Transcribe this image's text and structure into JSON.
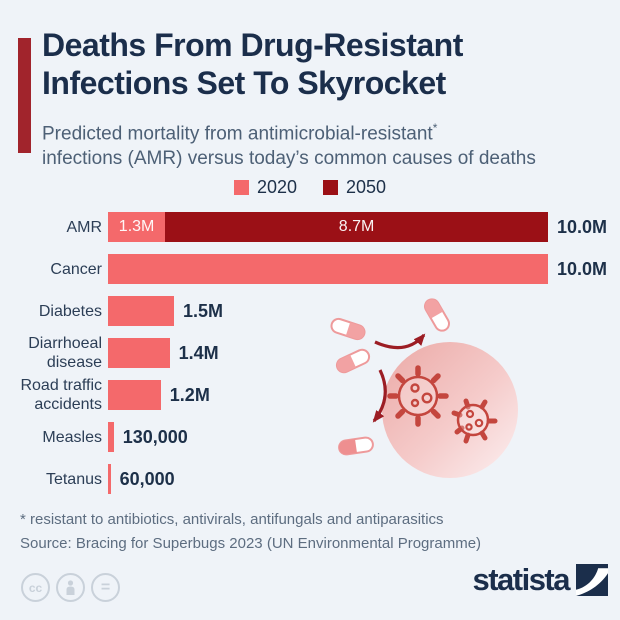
{
  "page": {
    "background": "#eff3f8",
    "accent_color": "#a1242c",
    "brand_color": "#1b2e4b"
  },
  "header": {
    "title": "Deaths From Drug-Resistant Infections Set To Skyrocket",
    "subtitle_line1": "Predicted mortality from antimicrobial-resistant",
    "subtitle_sup": "*",
    "subtitle_line2": "infections (AMR) versus today’s common causes of deaths"
  },
  "legend": [
    {
      "label": "2020",
      "color": "#f4696b"
    },
    {
      "label": "2050",
      "color": "#9b1016"
    }
  ],
  "chart_data": {
    "type": "bar",
    "orientation": "horizontal",
    "title": "Predicted mortality from antimicrobial-resistant infections (AMR) versus today's common causes of deaths",
    "unit": "annual deaths (millions)",
    "x_max": 10.0,
    "grid": false,
    "legend_position": "top-center",
    "series_names": [
      "2020",
      "2050"
    ],
    "series_colors": [
      "#f4696b",
      "#9b1016"
    ],
    "rows": [
      {
        "category": "AMR",
        "value_2020_m": 1.3,
        "value_2050_m": 8.7,
        "label_2020": "1.3M",
        "label_2050": "8.7M",
        "total_label": "10.0M"
      },
      {
        "category": "Cancer",
        "value_2020_m": 10.0,
        "value_2050_m": 0,
        "total_label": "10.0M"
      },
      {
        "category": "Diabetes",
        "value_2020_m": 1.5,
        "value_2050_m": 0,
        "total_label": "1.5M"
      },
      {
        "category": "Diarrhoeal disease",
        "value_2020_m": 1.4,
        "value_2050_m": 0,
        "total_label": "1.4M"
      },
      {
        "category": "Road traffic accidents",
        "value_2020_m": 1.2,
        "value_2050_m": 0,
        "total_label": "1.2M"
      },
      {
        "category": "Measles",
        "value_2020_m": 0.13,
        "value_2050_m": 0,
        "total_label": "130,000"
      },
      {
        "category": "Tetanus",
        "value_2020_m": 0.06,
        "value_2050_m": 0,
        "total_label": "60,000"
      }
    ]
  },
  "footer": {
    "note": "* resistant to antibiotics, antivirals, antifungals and antiparasitics",
    "source": "Source: Bracing for Superbugs 2023 (UN Environmental Programme)",
    "cc_badges": [
      "cc",
      "person",
      "="
    ]
  },
  "branding": {
    "logo_text": "statista"
  }
}
